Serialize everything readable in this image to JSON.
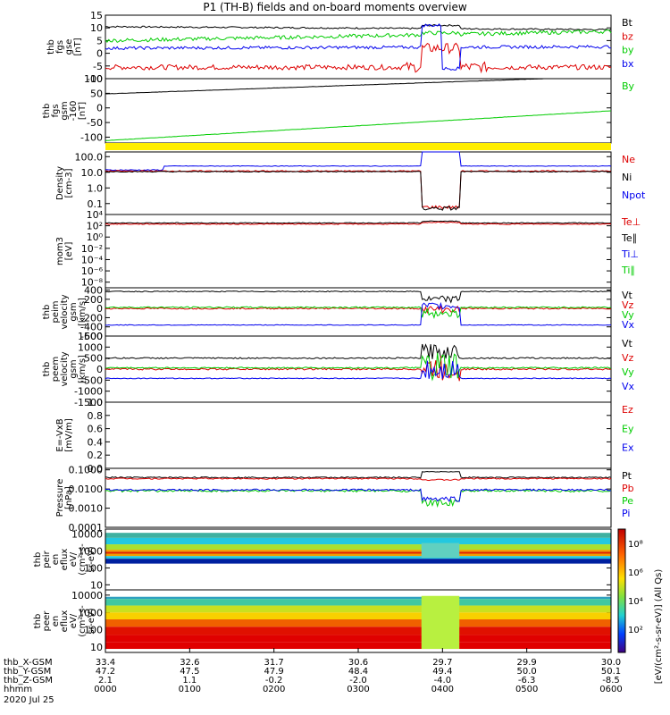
{
  "title": "P1 (TH-B) fields and on-board moments overview",
  "colors": {
    "black": "#000000",
    "red": "#dd0000",
    "green": "#00cc00",
    "blue": "#0000ee",
    "yellow": "#ffee00"
  },
  "panels": [
    {
      "id": "fgs",
      "ylabel": [
        "thb",
        "fgs",
        "gse",
        "[nT]"
      ],
      "ticks": [
        "15",
        "10",
        "5",
        "0",
        "-5",
        "-10"
      ],
      "tickvals": [
        15,
        10,
        5,
        0,
        -5,
        -10
      ],
      "ymin": -10,
      "ymax": 15,
      "legend": [
        "Bt",
        "bz",
        "by",
        "bx"
      ],
      "legend_colors": [
        "black",
        "red",
        "green",
        "blue"
      ]
    },
    {
      "id": "fgsgsm",
      "ylabel": [
        "thb",
        "fgs",
        "gsm",
        "-160",
        "[nT]"
      ],
      "ticks": [
        "100",
        "50",
        "0",
        "-50",
        "-100"
      ],
      "tickvals": [
        100,
        50,
        0,
        -50,
        -100
      ],
      "ymin": -120,
      "ymax": 100,
      "legend": [
        "By"
      ],
      "legend_colors": [
        "green"
      ]
    },
    {
      "id": "density",
      "ylabel": [
        "Density",
        "[cm-3]"
      ],
      "ticks": [
        "100.0",
        "10.0",
        "1.0",
        "0.1"
      ],
      "tickvals": [
        100,
        10,
        1,
        0.1
      ],
      "log": true,
      "ymin": 0.02,
      "ymax": 200,
      "legend": [
        "Ne",
        "Ni",
        "Npot"
      ],
      "legend_colors": [
        "red",
        "black",
        "blue"
      ]
    },
    {
      "id": "temp",
      "ylabel": [
        "mom3",
        "[eV]"
      ],
      "ticks": [
        "10⁴",
        "10²",
        "10⁰",
        "10⁻²",
        "10⁻⁴",
        "10⁻⁶",
        "10⁻⁸"
      ],
      "tickvals": [
        4,
        2,
        0,
        -2,
        -4,
        -6,
        -8
      ],
      "ymin": -9,
      "ymax": 4,
      "legend": [
        "Te⊥",
        "Te∥",
        "Ti⊥",
        "Ti∥"
      ],
      "legend_colors": [
        "red",
        "black",
        "blue",
        "green"
      ]
    },
    {
      "id": "vpeim",
      "ylabel": [
        "thb",
        "peim",
        "velocity",
        "gsm",
        "[km/s]"
      ],
      "ticks": [
        "400",
        "200",
        "0",
        "-200",
        "-400",
        "-600"
      ],
      "tickvals": [
        400,
        200,
        0,
        -200,
        -400,
        -600
      ],
      "ymin": -600,
      "ymax": 450,
      "legend": [
        "Vt",
        "Vz",
        "Vy",
        "Vx"
      ],
      "legend_colors": [
        "black",
        "red",
        "green",
        "blue"
      ]
    },
    {
      "id": "vpeem",
      "ylabel": [
        "thb",
        "peem",
        "velocity",
        "gsm",
        "[km/s]"
      ],
      "ticks": [
        "1500",
        "1000",
        "500",
        "0",
        "-500",
        "-1000",
        "-1500"
      ],
      "tickvals": [
        1500,
        1000,
        500,
        0,
        -500,
        -1000,
        -1500
      ],
      "ymin": -1500,
      "ymax": 1500,
      "legend": [
        "Vt",
        "Vz",
        "Vy",
        "Vx"
      ],
      "legend_colors": [
        "black",
        "red",
        "green",
        "blue"
      ]
    },
    {
      "id": "efield",
      "ylabel": [
        "E=-VxB",
        "[mV/m]"
      ],
      "ticks": [
        "1.0",
        "0.8",
        "0.6",
        "0.4",
        "0.2",
        "0.0"
      ],
      "tickvals": [
        1.0,
        0.8,
        0.6,
        0.4,
        0.2,
        0.0
      ],
      "ymin": 0,
      "ymax": 1,
      "legend": [
        "Ez",
        "Ey",
        "Ex"
      ],
      "legend_colors": [
        "red",
        "green",
        "blue"
      ]
    },
    {
      "id": "pressure",
      "ylabel": [
        "Pressure",
        "[nPa]"
      ],
      "ticks": [
        "0.1000",
        "0.0100",
        "0.0010",
        "0.0001"
      ],
      "tickvals": [
        0.1,
        0.01,
        0.001,
        0.0001
      ],
      "log": true,
      "ymin": 0.0001,
      "ymax": 0.12,
      "legend": [
        "Pt",
        "Pb",
        "Pe",
        "Pi"
      ],
      "legend_colors": [
        "black",
        "red",
        "green",
        "blue"
      ]
    },
    {
      "id": "peir",
      "ylabel": [
        "thb",
        "peir",
        "en",
        "eflux",
        "eV/",
        "(cm²-s-",
        "sr-eV)"
      ],
      "ticks": [
        "10000",
        "1000",
        "100",
        "10"
      ],
      "tickvals": [
        10000,
        1000,
        100,
        10
      ],
      "log": true,
      "ymin": 5,
      "ymax": 20000,
      "legend": [],
      "legend_colors": []
    },
    {
      "id": "peer",
      "ylabel": [
        "thb",
        "peer",
        "en",
        "eflux",
        "eV/",
        "(cm²-s-",
        "sr-eV)"
      ],
      "ticks": [
        "10000",
        "1000",
        "100",
        "10"
      ],
      "tickvals": [
        10000,
        1000,
        100,
        10
      ],
      "log": true,
      "ymin": 5,
      "ymax": 20000,
      "legend": [],
      "legend_colors": []
    }
  ],
  "colorbar": {
    "labels": [
      "10⁸",
      "10⁶",
      "10⁴",
      "10²"
    ],
    "title": "[eV/(cm²-s-sr-eV)] (All Qs)"
  },
  "xaxis": {
    "row_labels": [
      "thb_X-GSM",
      "thb_Y-GSM",
      "thb_Z-GSM",
      "hhmm",
      "2020 Jul 25"
    ],
    "columns": [
      {
        "x": "33.4",
        "y": "47.2",
        "z": "2.1",
        "t": "0000"
      },
      {
        "x": "32.6",
        "y": "47.5",
        "z": "1.1",
        "t": "0100"
      },
      {
        "x": "31.7",
        "y": "47.9",
        "z": "-0.2",
        "t": "0200"
      },
      {
        "x": "30.6",
        "y": "48.4",
        "z": "-2.0",
        "t": "0300"
      },
      {
        "x": "29.7",
        "y": "49.4",
        "z": "-4.0",
        "t": "0400"
      },
      {
        "x": "29.9",
        "y": "50.0",
        "z": "-6.3",
        "t": "0500"
      },
      {
        "x": "30.0",
        "y": "50.1",
        "z": "-8.5",
        "t": "0600"
      }
    ]
  },
  "chart_data": {
    "type": "line",
    "title": "P1 (TH-B) fields and on-board moments overview",
    "x_unit": "hours since 2020-07-25 00:00 UT",
    "x": [
      0,
      0.5,
      1,
      1.5,
      2,
      2.5,
      3,
      3.5,
      3.9,
      4.1,
      4.3,
      4.5,
      5,
      5.5,
      6
    ],
    "series": [
      {
        "name": "Bt",
        "values": [
          10,
          10,
          10,
          10,
          10,
          10,
          10,
          10,
          11,
          10,
          9,
          9,
          9,
          9,
          9
        ]
      },
      {
        "name": "bz",
        "values": [
          -5,
          -5,
          -6,
          -6,
          -6,
          -5,
          -4,
          -3,
          -3,
          -2,
          -6,
          -6,
          -5,
          -5,
          -4
        ]
      },
      {
        "name": "by",
        "values": [
          6,
          5,
          7,
          6,
          7,
          7,
          8,
          9,
          7,
          8,
          9,
          8,
          9,
          9,
          9
        ]
      },
      {
        "name": "bx",
        "values": [
          2,
          2,
          3,
          3,
          3,
          3,
          3,
          3,
          8,
          -2,
          0,
          0,
          0,
          0,
          0
        ]
      },
      {
        "name": "Ne",
        "values": [
          12,
          12,
          20,
          15,
          15,
          13,
          13,
          12,
          0.05,
          0.04,
          12,
          12,
          12,
          12,
          12
        ]
      }
    ]
  }
}
